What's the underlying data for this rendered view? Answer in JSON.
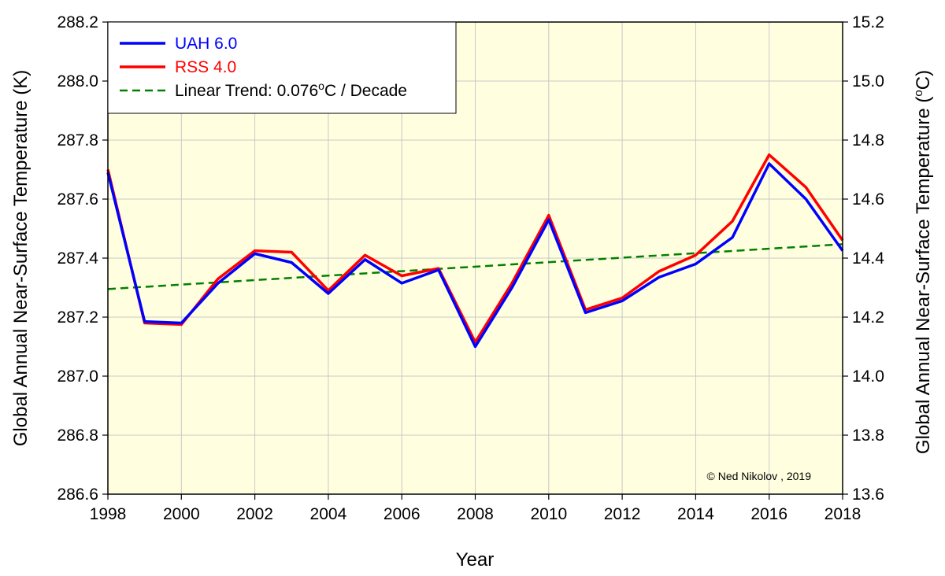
{
  "chart_data": {
    "type": "line",
    "xlabel": "Year",
    "ylabel_left": "Global Annual Near-Surface Temperature (K)",
    "ylabel_right_prefix": "Global Annual Near-Surface Temperature (",
    "ylabel_right_sup": "o",
    "ylabel_right_suffix": "C)",
    "xlim": [
      1998,
      2018
    ],
    "ylim_left": [
      286.6,
      288.2
    ],
    "ylim_right": [
      13.6,
      15.2
    ],
    "x_ticks": [
      "1998",
      "2000",
      "2002",
      "2004",
      "2006",
      "2008",
      "2010",
      "2012",
      "2014",
      "2016",
      "2018"
    ],
    "y_ticks_left": [
      "286.6",
      "286.8",
      "287.0",
      "287.2",
      "287.4",
      "287.6",
      "287.8",
      "288.0",
      "288.2"
    ],
    "y_ticks_right": [
      "13.6",
      "13.8",
      "14.0",
      "14.2",
      "14.4",
      "14.6",
      "14.8",
      "15.0",
      "15.2"
    ],
    "grid": true,
    "legend_position": "top-left",
    "plot_background": "#FFFFE0",
    "x": [
      1998,
      1999,
      2000,
      2001,
      2002,
      2003,
      2004,
      2005,
      2006,
      2007,
      2008,
      2009,
      2010,
      2011,
      2012,
      2013,
      2014,
      2015,
      2016,
      2017,
      2018
    ],
    "series": [
      {
        "name": "UAH 6.0",
        "color": "#0000FF",
        "style": "solid",
        "values": [
          287.69,
          287.185,
          287.18,
          287.315,
          287.415,
          287.385,
          287.28,
          287.395,
          287.315,
          287.36,
          287.1,
          287.3,
          287.53,
          287.215,
          287.255,
          287.335,
          287.38,
          287.47,
          287.72,
          287.6,
          287.425
        ]
      },
      {
        "name": "RSS 4.0",
        "color": "#FF0000",
        "style": "solid",
        "values": [
          287.7,
          287.18,
          287.175,
          287.33,
          287.425,
          287.42,
          287.29,
          287.41,
          287.34,
          287.365,
          287.115,
          287.315,
          287.545,
          287.225,
          287.265,
          287.355,
          287.41,
          287.525,
          287.75,
          287.64,
          287.46
        ]
      }
    ],
    "trend": {
      "label_prefix": "Linear Trend: 0.076",
      "label_sup": "o",
      "label_suffix": "C / Decade",
      "color": "#008000",
      "style": "dashed",
      "x": [
        1998,
        2018
      ],
      "values": [
        287.295,
        287.447
      ]
    },
    "annotation": "© Ned Nikolov , 2019"
  }
}
